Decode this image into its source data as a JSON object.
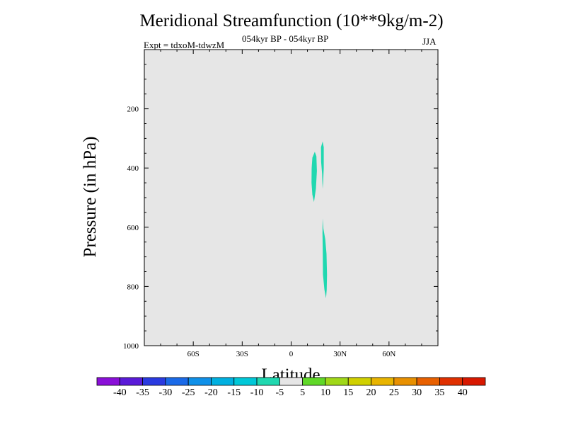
{
  "chart_data": {
    "type": "contour",
    "title": "Meridional Streamfunction (10**9kg/m-2)",
    "subtitle_center": "054kyr BP - 054kyr BP",
    "subtitle_left": "Expt = tdxoM-tdwzM",
    "subtitle_right": "JJA",
    "xlabel": "Latitude",
    "ylabel": "Pressure (in hPa)",
    "xlim": [
      -90,
      90
    ],
    "ylim": [
      1000,
      0
    ],
    "x_ticks": [
      {
        "value": -60,
        "label": "60S"
      },
      {
        "value": -30,
        "label": "30S"
      },
      {
        "value": 0,
        "label": "0"
      },
      {
        "value": 30,
        "label": "30N"
      },
      {
        "value": 60,
        "label": "60N"
      }
    ],
    "y_ticks": [
      {
        "value": 200,
        "label": "200"
      },
      {
        "value": 400,
        "label": "400"
      },
      {
        "value": 600,
        "label": "600"
      },
      {
        "value": 800,
        "label": "800"
      },
      {
        "value": 1000,
        "label": "1000"
      }
    ],
    "background_color": "#e6e6e6",
    "regions": [
      {
        "level_range": [
          -10,
          -5
        ],
        "color": "#20d8b0",
        "points": [
          [
            13,
            365
          ],
          [
            14.5,
            345
          ],
          [
            15.5,
            360
          ],
          [
            15.8,
            410
          ],
          [
            15.2,
            470
          ],
          [
            14,
            515
          ],
          [
            13,
            490
          ],
          [
            12.5,
            450
          ],
          [
            12.6,
            400
          ]
        ]
      },
      {
        "level_range": [
          -10,
          -5
        ],
        "color": "#20d8b0",
        "points": [
          [
            18.3,
            330
          ],
          [
            19.3,
            310
          ],
          [
            20,
            330
          ],
          [
            20,
            400
          ],
          [
            19.6,
            450
          ],
          [
            19.3,
            470
          ],
          [
            19,
            420
          ],
          [
            18.4,
            380
          ]
        ]
      },
      {
        "level_range": [
          -10,
          -5
        ],
        "color": "#20d8b0",
        "points": [
          [
            19.3,
            570
          ],
          [
            19.8,
            605
          ],
          [
            20.9,
            640
          ],
          [
            21.7,
            690
          ],
          [
            22,
            760
          ],
          [
            21.8,
            810
          ],
          [
            21.4,
            840
          ],
          [
            20.4,
            810
          ],
          [
            19.5,
            760
          ],
          [
            19.4,
            680
          ],
          [
            19.2,
            620
          ]
        ]
      }
    ],
    "colorbar": {
      "levels": [
        -40,
        -35,
        -30,
        -25,
        -20,
        -15,
        -10,
        -5,
        5,
        10,
        15,
        20,
        25,
        30,
        35,
        40
      ],
      "colors": [
        "#8a0fd8",
        "#5a1ad8",
        "#2a3ae0",
        "#1a6ae8",
        "#0f90e8",
        "#00b0e0",
        "#00c8d8",
        "#20d8b0",
        "#e6e6e6",
        "#60d828",
        "#a0d818",
        "#d0d000",
        "#e8b400",
        "#e89000",
        "#e86000",
        "#e03000",
        "#d81800"
      ]
    }
  }
}
